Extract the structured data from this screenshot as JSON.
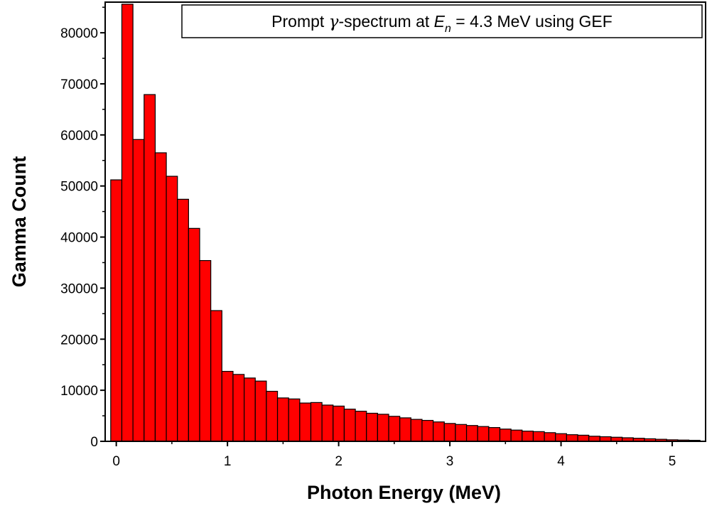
{
  "chart_data": {
    "type": "bar",
    "title": "",
    "legend": {
      "prefix": "Prompt ",
      "gamma": "γ",
      "middle": "-spectrum at ",
      "e_symbol": "E",
      "e_sub": "n",
      "suffix": " = 4.3 MeV using GEF"
    },
    "xlabel": "Photon Energy (MeV)",
    "ylabel": "Gamma Count",
    "xlim": [
      -0.1,
      5.3
    ],
    "ylim": [
      0,
      86000
    ],
    "xticks": [
      0,
      1,
      2,
      3,
      4,
      5
    ],
    "yticks": [
      0,
      10000,
      20000,
      30000,
      40000,
      50000,
      60000,
      70000,
      80000
    ],
    "bar_width": 0.1,
    "bar_color": "#ff0000",
    "edge_color": "#000000",
    "grid": false,
    "legend_placement": "top-right",
    "x": [
      0.0,
      0.1,
      0.2,
      0.3,
      0.4,
      0.5,
      0.6,
      0.7,
      0.8,
      0.9,
      1.0,
      1.1,
      1.2,
      1.3,
      1.4,
      1.5,
      1.6,
      1.7,
      1.8,
      1.9,
      2.0,
      2.1,
      2.2,
      2.3,
      2.4,
      2.5,
      2.6,
      2.7,
      2.8,
      2.9,
      3.0,
      3.1,
      3.2,
      3.3,
      3.4,
      3.5,
      3.6,
      3.7,
      3.8,
      3.9,
      4.0,
      4.1,
      4.2,
      4.3,
      4.4,
      4.5,
      4.6,
      4.7,
      4.8,
      4.9,
      5.0,
      5.1,
      5.2
    ],
    "values": [
      51200,
      85600,
      59100,
      67900,
      56500,
      51900,
      47400,
      41700,
      35400,
      25600,
      13700,
      13100,
      12400,
      11800,
      9800,
      8500,
      8300,
      7500,
      7600,
      7100,
      6900,
      6300,
      5900,
      5500,
      5300,
      4900,
      4600,
      4300,
      4100,
      3800,
      3500,
      3300,
      3100,
      2900,
      2700,
      2400,
      2200,
      2000,
      1900,
      1700,
      1500,
      1300,
      1200,
      1000,
      900,
      800,
      700,
      600,
      500,
      400,
      300,
      250,
      200
    ]
  }
}
